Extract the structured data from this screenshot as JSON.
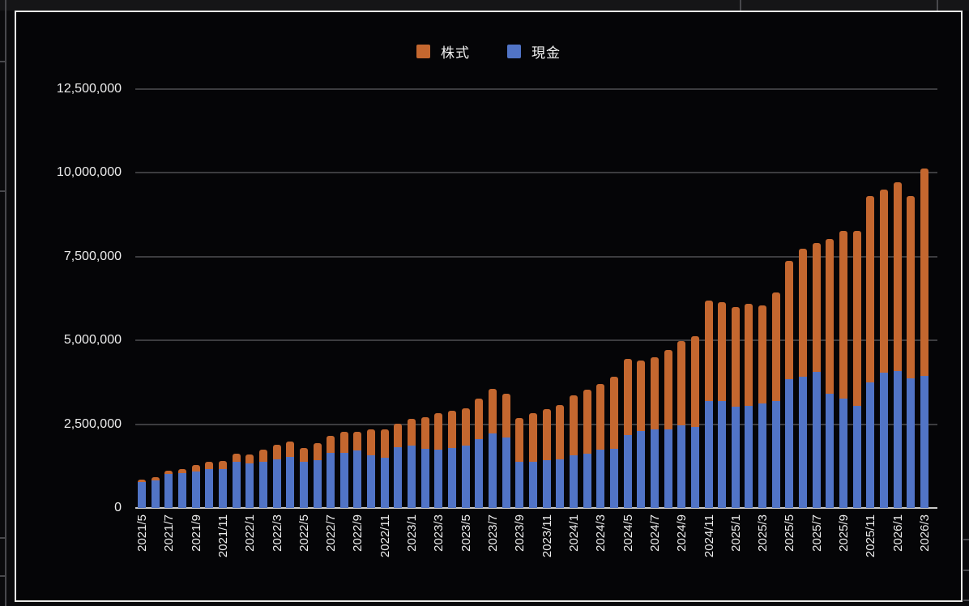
{
  "legend": {
    "items": [
      {
        "label": "株式",
        "color": "#c4672f"
      },
      {
        "label": "現金",
        "color": "#5174c6"
      }
    ]
  },
  "chart_data": {
    "type": "bar",
    "stacked": true,
    "title": "",
    "xlabel": "",
    "ylabel": "",
    "ylim": [
      0,
      12500000
    ],
    "grid": true,
    "legend_position": "top-center",
    "background": "#050507",
    "y_tick_interval": 2500000,
    "y_tick_labels": [
      "0",
      "2,500,000",
      "5,000,000",
      "7,500,000",
      "10,000,000",
      "12,500,000"
    ],
    "x_label_every": 2,
    "categories": [
      "2021/5",
      "2021/6",
      "2021/7",
      "2021/8",
      "2021/9",
      "2021/10",
      "2021/11",
      "2021/12",
      "2022/1",
      "2022/2",
      "2022/3",
      "2022/4",
      "2022/5",
      "2022/6",
      "2022/7",
      "2022/8",
      "2022/9",
      "2022/10",
      "2022/11",
      "2022/12",
      "2023/1",
      "2023/2",
      "2023/3",
      "2023/4",
      "2023/5",
      "2023/6",
      "2023/7",
      "2023/8",
      "2023/9",
      "2023/10",
      "2023/11",
      "2023/12",
      "2024/1",
      "2024/2",
      "2024/3",
      "2024/4",
      "2024/5",
      "2024/6",
      "2024/7",
      "2024/8",
      "2024/9",
      "2024/10",
      "2024/11",
      "2024/12",
      "2025/1",
      "2025/2",
      "2025/3",
      "2025/4",
      "2025/5",
      "2025/6",
      "2025/7",
      "2025/8",
      "2025/9",
      "2025/10",
      "2025/11",
      "2025/12",
      "2026/1",
      "2026/2",
      "2026/3"
    ],
    "series": [
      {
        "name": "現金",
        "color": "#5174c6",
        "stack_order": 0,
        "values": [
          770000,
          830000,
          1010000,
          1030000,
          1090000,
          1150000,
          1170000,
          1370000,
          1330000,
          1390000,
          1450000,
          1520000,
          1370000,
          1430000,
          1640000,
          1650000,
          1720000,
          1570000,
          1490000,
          1810000,
          1850000,
          1760000,
          1730000,
          1790000,
          1850000,
          2060000,
          2220000,
          2110000,
          1370000,
          1390000,
          1430000,
          1450000,
          1560000,
          1630000,
          1730000,
          1760000,
          2180000,
          2300000,
          2340000,
          2350000,
          2470000,
          2420000,
          3200000,
          3200000,
          3020000,
          3050000,
          3130000,
          3180000,
          3850000,
          3910000,
          4070000,
          3400000,
          3260000,
          3040000,
          3750000,
          4050000,
          4090000,
          3870000,
          3950000
        ]
      },
      {
        "name": "株式",
        "color": "#c4672f",
        "stack_order": 1,
        "values": [
          80000,
          100000,
          100000,
          140000,
          180000,
          220000,
          240000,
          240000,
          260000,
          360000,
          430000,
          460000,
          420000,
          500000,
          520000,
          630000,
          550000,
          770000,
          860000,
          710000,
          810000,
          940000,
          1110000,
          1100000,
          1130000,
          1200000,
          1340000,
          1310000,
          1310000,
          1430000,
          1510000,
          1610000,
          1810000,
          1890000,
          1980000,
          2160000,
          2280000,
          2090000,
          2160000,
          2360000,
          2500000,
          2700000,
          2990000,
          2950000,
          2970000,
          3050000,
          2910000,
          3240000,
          3520000,
          3820000,
          3830000,
          4630000,
          5000000,
          5220000,
          5570000,
          5460000,
          5620000,
          5440000,
          6180000
        ]
      }
    ]
  }
}
